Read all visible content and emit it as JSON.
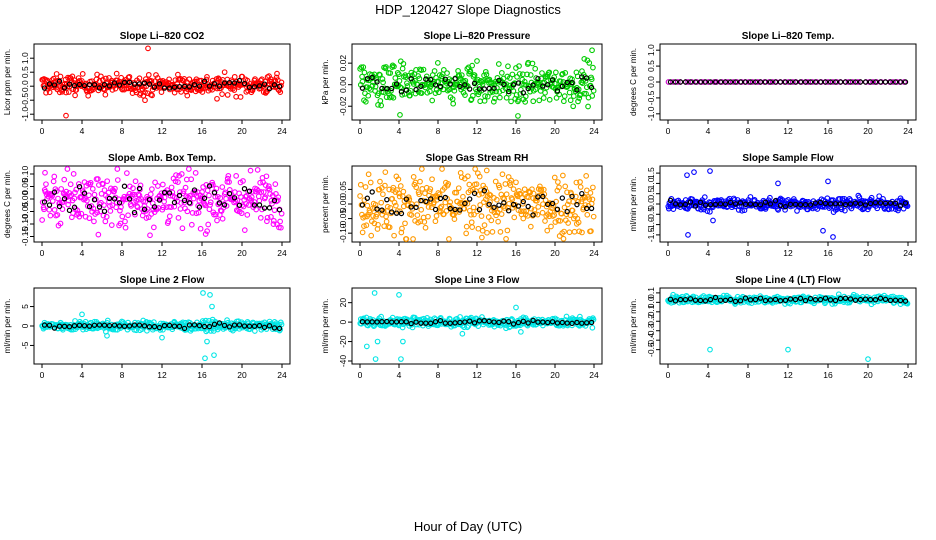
{
  "figure": {
    "title": "HDP_120427  Slope Diagnostics",
    "xlabel": "Hour of Day (UTC)"
  },
  "chart_data": [
    {
      "type": "scatter",
      "title": "Slope Li–820 CO2",
      "ylabel": "Licor ppm per min.",
      "color": "#ff0000",
      "xlim": [
        0,
        24
      ],
      "xticks": [
        0,
        4,
        8,
        12,
        16,
        20,
        24
      ],
      "xtick_labels": [
        "0",
        "4",
        "8",
        "12",
        "16",
        "20",
        "24"
      ],
      "ylim": [
        -1.1,
        1.4
      ],
      "yticks": [
        -1.0,
        -0.5,
        0.0,
        0.5,
        1.0
      ],
      "ytick_labels": [
        "-1.0",
        "-0.5",
        "0.0",
        "0.5",
        "1.0"
      ],
      "sample_spread": 0.17,
      "sample_center": 0.05,
      "outliers": [
        [
          2.4,
          -1.05
        ],
        [
          10.6,
          1.35
        ],
        [
          10.3,
          -0.5
        ],
        [
          17.5,
          -0.45
        ],
        [
          23.5,
          0.45
        ]
      ]
    },
    {
      "type": "scatter",
      "title": "Slope Li–820 Pressure",
      "ylabel": "kPa per min.",
      "color": "#00cc00",
      "xlim": [
        0,
        24
      ],
      "xticks": [
        0,
        4,
        8,
        12,
        16,
        20,
        24
      ],
      "xtick_labels": [
        "0",
        "4",
        "8",
        "12",
        "16",
        "20",
        "24"
      ],
      "ylim": [
        -0.03,
        0.035
      ],
      "yticks": [
        -0.02,
        0.0,
        0.02
      ],
      "ytick_labels": [
        "-0.02",
        "0.00",
        "0.02"
      ],
      "sample_spread": 0.009,
      "sample_center": 0.0,
      "outliers": [
        [
          4.1,
          -0.028
        ],
        [
          16.2,
          -0.029
        ],
        [
          23.8,
          0.032
        ],
        [
          23.0,
          0.024
        ],
        [
          12.0,
          0.022
        ]
      ]
    },
    {
      "type": "scatter",
      "title": "Slope Li–820 Temp.",
      "ylabel": "degrees C per min.",
      "color": "#cc00cc",
      "xlim": [
        0,
        24
      ],
      "xticks": [
        0,
        4,
        8,
        12,
        16,
        20,
        24
      ],
      "xtick_labels": [
        "0",
        "4",
        "8",
        "12",
        "16",
        "20",
        "24"
      ],
      "ylim": [
        -1.1,
        1.1
      ],
      "yticks": [
        -1.0,
        -0.5,
        0.0,
        0.5,
        1.0
      ],
      "ytick_labels": [
        "-1.0",
        "-0.5",
        "0.0",
        "0.5",
        "1.0"
      ],
      "sample_spread": 0.0,
      "sample_center": 0.0,
      "outliers": []
    },
    {
      "type": "scatter",
      "title": "Slope Amb. Box Temp.",
      "ylabel": "degrees C per min.",
      "color": "#ff00ff",
      "xlim": [
        0,
        24
      ],
      "xticks": [
        0,
        4,
        8,
        12,
        16,
        20,
        24
      ],
      "xtick_labels": [
        "0",
        "4",
        "8",
        "12",
        "16",
        "20",
        "24"
      ],
      "ylim": [
        -0.16,
        0.12
      ],
      "yticks": [
        -0.15,
        -0.1,
        -0.05,
        0.0,
        0.05,
        0.1
      ],
      "ytick_labels": [
        "-0.15",
        "-0.10",
        "-0.05",
        "0.00",
        "0.05",
        "0.10"
      ],
      "sample_spread": 0.055,
      "sample_center": 0.0,
      "outliers": [
        [
          10.8,
          -0.145
        ],
        [
          0.3,
          0.105
        ]
      ]
    },
    {
      "type": "scatter",
      "title": "Slope Gas Stream RH",
      "ylabel": "percent per min.",
      "color": "#ff9900",
      "xlim": [
        0,
        24
      ],
      "xticks": [
        0,
        4,
        8,
        12,
        16,
        20,
        24
      ],
      "xtick_labels": [
        "0",
        "4",
        "8",
        "12",
        "16",
        "20",
        "24"
      ],
      "ylim": [
        -0.12,
        0.12
      ],
      "yticks": [
        -0.1,
        -0.05,
        0.0,
        0.05
      ],
      "ytick_labels": [
        "-0.10",
        "-0.05",
        "0.00",
        "0.05"
      ],
      "sample_spread": 0.055,
      "sample_center": 0.0,
      "outliers": [
        [
          12.5,
          -0.115
        ],
        [
          13.0,
          0.115
        ]
      ]
    },
    {
      "type": "scatter",
      "title": "Slope Sample Flow",
      "ylabel": "ml/min per min.",
      "color": "#0000ff",
      "xlim": [
        0,
        24
      ],
      "xticks": [
        0,
        4,
        8,
        12,
        16,
        20,
        24
      ],
      "xtick_labels": [
        "0",
        "4",
        "8",
        "12",
        "16",
        "20",
        "24"
      ],
      "ylim": [
        -1.7,
        1.7
      ],
      "yticks": [
        -1.5,
        -1.0,
        -0.5,
        0.0,
        0.5,
        1.0,
        1.5
      ],
      "ytick_labels": [
        "-1.5",
        "-1.0",
        "-0.5",
        "0.0",
        "0.5",
        "1.0",
        "1.5"
      ],
      "sample_spread": 0.15,
      "sample_center": 0.0,
      "outliers": [
        [
          1.9,
          1.4
        ],
        [
          2.6,
          1.55
        ],
        [
          4.2,
          1.6
        ],
        [
          4.5,
          -0.8
        ],
        [
          2.0,
          -1.5
        ],
        [
          15.5,
          -1.3
        ],
        [
          16.5,
          -1.6
        ],
        [
          16.0,
          1.1
        ],
        [
          11.0,
          1.0
        ]
      ]
    },
    {
      "type": "scatter",
      "title": "Slope Line 2 Flow",
      "ylabel": "ml/min per min.",
      "color": "#00e5e5",
      "xlim": [
        0,
        24
      ],
      "xticks": [
        0,
        4,
        8,
        12,
        16,
        20,
        24
      ],
      "xtick_labels": [
        "0",
        "4",
        "8",
        "12",
        "16",
        "20",
        "24"
      ],
      "ylim": [
        -9,
        9
      ],
      "yticks": [
        -5,
        0,
        5
      ],
      "ytick_labels": [
        "-5",
        "0",
        "5"
      ],
      "sample_spread": 0.6,
      "sample_center": 0.0,
      "outliers": [
        [
          16.1,
          8.5
        ],
        [
          16.8,
          8.0
        ],
        [
          17.0,
          5.0
        ],
        [
          16.5,
          -4.0
        ],
        [
          17.2,
          -7.5
        ],
        [
          16.3,
          -8.3
        ],
        [
          6.5,
          -2.5
        ],
        [
          4.0,
          3.0
        ],
        [
          12.0,
          -3.0
        ]
      ]
    },
    {
      "type": "scatter",
      "title": "Slope Line 3 Flow",
      "ylabel": "ml/min per min.",
      "color": "#00e5e5",
      "xlim": [
        0,
        24
      ],
      "xticks": [
        0,
        4,
        8,
        12,
        16,
        20,
        24
      ],
      "xtick_labels": [
        "0",
        "4",
        "8",
        "12",
        "16",
        "20",
        "24"
      ],
      "ylim": [
        -40,
        32
      ],
      "yticks": [
        -40,
        -20,
        0,
        20
      ],
      "ytick_labels": [
        "-40",
        "-20",
        "0",
        "20"
      ],
      "sample_spread": 2.5,
      "sample_center": 0.0,
      "outliers": [
        [
          1.5,
          30
        ],
        [
          0.7,
          -25
        ],
        [
          1.8,
          -20
        ],
        [
          4.2,
          -38
        ],
        [
          4.4,
          -20
        ],
        [
          4.0,
          28
        ],
        [
          10.5,
          -12
        ],
        [
          16.0,
          15
        ],
        [
          16.5,
          -10
        ],
        [
          1.6,
          -38
        ]
      ]
    },
    {
      "type": "scatter",
      "title": "Slope Line 4 (LT) Flow",
      "ylabel": "ml/min per min.",
      "color": "#00e5e5",
      "xlim": [
        0,
        24
      ],
      "xticks": [
        0,
        4,
        8,
        12,
        16,
        20,
        24
      ],
      "xtick_labels": [
        "0",
        "4",
        "8",
        "12",
        "16",
        "20",
        "24"
      ],
      "ylim": [
        -0.62,
        0.12
      ],
      "yticks": [
        -0.5,
        -0.4,
        -0.3,
        -0.2,
        -0.1,
        0.0,
        0.1
      ],
      "ytick_labels": [
        "-0.5",
        "-0.4",
        "-0.3",
        "-0.2",
        "-0.1",
        "0.0",
        "0.1"
      ],
      "sample_spread": 0.02,
      "sample_center": 0.03,
      "outliers": [
        [
          4.2,
          -0.5
        ],
        [
          12.0,
          -0.5
        ],
        [
          20.0,
          -0.6
        ]
      ]
    }
  ]
}
